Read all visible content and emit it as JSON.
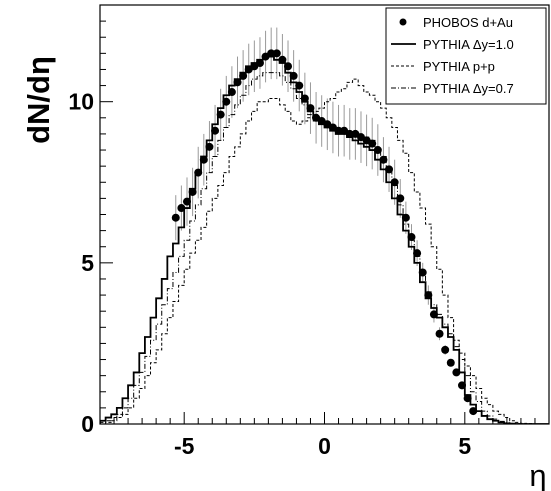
{
  "chart_data": {
    "type": "line",
    "title": "",
    "xlabel": "η",
    "ylabel": "dN/dη",
    "xlim": [
      -8,
      8
    ],
    "ylim": [
      0,
      13
    ],
    "grid": false,
    "legend_position": "top-right",
    "x_ticks": [
      {
        "value": -5,
        "label": "-5"
      },
      {
        "value": 0,
        "label": "0"
      },
      {
        "value": 5,
        "label": "5"
      }
    ],
    "y_ticks": [
      {
        "value": 0,
        "label": "0"
      },
      {
        "value": 5,
        "label": "5"
      },
      {
        "value": 10,
        "label": "10"
      }
    ],
    "bin_width": 0.2,
    "series": [
      {
        "name": "PHOBOS d+Au",
        "style": "points",
        "points": [
          [
            -5.3,
            6.4,
            0.7
          ],
          [
            -5.1,
            6.7,
            0.7
          ],
          [
            -4.9,
            6.9,
            0.75
          ],
          [
            -4.7,
            7.2,
            0.75
          ],
          [
            -4.5,
            7.8,
            0.8
          ],
          [
            -4.3,
            8.2,
            0.8
          ],
          [
            -4.1,
            8.6,
            0.8
          ],
          [
            -3.9,
            9.1,
            0.8
          ],
          [
            -3.7,
            9.6,
            0.8
          ],
          [
            -3.5,
            10.0,
            0.8
          ],
          [
            -3.3,
            10.3,
            0.8
          ],
          [
            -3.1,
            10.6,
            0.8
          ],
          [
            -2.9,
            10.8,
            0.8
          ],
          [
            -2.7,
            11.0,
            0.8
          ],
          [
            -2.5,
            11.1,
            0.8
          ],
          [
            -2.3,
            11.2,
            0.8
          ],
          [
            -2.1,
            11.4,
            0.8
          ],
          [
            -1.9,
            11.5,
            0.8
          ],
          [
            -1.7,
            11.5,
            0.8
          ],
          [
            -1.5,
            11.3,
            0.8
          ],
          [
            -1.3,
            11.1,
            0.8
          ],
          [
            -1.1,
            10.8,
            0.8
          ],
          [
            -0.9,
            10.5,
            0.8
          ],
          [
            -0.7,
            10.1,
            0.8
          ],
          [
            -0.5,
            9.8,
            0.8
          ],
          [
            -0.3,
            9.5,
            0.8
          ],
          [
            -0.1,
            9.4,
            0.8
          ],
          [
            0.1,
            9.3,
            0.8
          ],
          [
            0.3,
            9.2,
            0.8
          ],
          [
            0.5,
            9.1,
            0.8
          ],
          [
            0.7,
            9.1,
            0.8
          ],
          [
            0.9,
            9.0,
            0.8
          ],
          [
            1.1,
            9.0,
            0.8
          ],
          [
            1.3,
            8.9,
            0.8
          ],
          [
            1.5,
            8.8,
            0.8
          ],
          [
            1.7,
            8.7,
            0.8
          ],
          [
            1.9,
            8.5,
            0.8
          ],
          [
            2.1,
            8.2,
            0.7
          ],
          [
            2.3,
            7.9,
            0.7
          ],
          [
            2.5,
            7.5,
            0.7
          ],
          [
            2.7,
            7.0,
            0.6
          ],
          [
            2.9,
            6.4,
            0.5
          ],
          [
            3.1,
            5.8,
            0.4
          ],
          [
            3.3,
            5.3,
            0.4
          ],
          [
            3.5,
            4.7,
            0.3
          ],
          [
            3.7,
            4.0,
            0.3
          ],
          [
            3.9,
            3.4,
            0.25
          ],
          [
            4.1,
            2.8,
            0.2
          ],
          [
            4.3,
            2.3,
            0.15
          ],
          [
            4.5,
            1.9,
            0.1
          ],
          [
            4.7,
            1.6,
            0.1
          ],
          [
            4.9,
            1.2,
            0.1
          ],
          [
            5.1,
            0.8,
            0.08
          ],
          [
            5.3,
            0.4,
            0.05
          ]
        ]
      },
      {
        "name": "PYTHIA Δy=1.0",
        "style": "solid",
        "x": [
          -7.9,
          -7.7,
          -7.5,
          -7.3,
          -7.1,
          -6.9,
          -6.7,
          -6.5,
          -6.3,
          -6.1,
          -5.9,
          -5.7,
          -5.5,
          -5.3,
          -5.1,
          -4.9,
          -4.7,
          -4.5,
          -4.3,
          -4.1,
          -3.9,
          -3.7,
          -3.5,
          -3.3,
          -3.1,
          -2.9,
          -2.7,
          -2.5,
          -2.3,
          -2.1,
          -1.9,
          -1.7,
          -1.5,
          -1.3,
          -1.1,
          -0.9,
          -0.7,
          -0.5,
          -0.3,
          -0.1,
          0.1,
          0.3,
          0.5,
          0.7,
          0.9,
          1.1,
          1.3,
          1.5,
          1.7,
          1.9,
          2.1,
          2.3,
          2.5,
          2.7,
          2.9,
          3.1,
          3.3,
          3.5,
          3.7,
          3.9,
          4.1,
          4.3,
          4.5,
          4.7,
          4.9,
          5.1,
          5.3,
          5.5,
          5.7,
          5.9,
          6.1,
          6.3,
          6.5,
          6.7,
          6.9,
          7.1,
          7.3,
          7.5,
          7.7,
          7.9
        ],
        "values": [
          0.1,
          0.2,
          0.3,
          0.5,
          0.8,
          1.2,
          1.6,
          2.2,
          2.7,
          3.3,
          3.9,
          4.5,
          5.2,
          5.6,
          6.1,
          6.7,
          7.3,
          7.8,
          8.3,
          8.8,
          9.3,
          9.8,
          10.2,
          10.5,
          10.7,
          10.9,
          11.1,
          11.2,
          11.3,
          11.4,
          11.4,
          11.3,
          11.2,
          10.9,
          10.6,
          10.3,
          10.0,
          9.7,
          9.5,
          9.3,
          9.2,
          9.1,
          9.0,
          9.0,
          8.9,
          8.8,
          8.7,
          8.6,
          8.5,
          8.2,
          7.9,
          7.5,
          7.0,
          6.5,
          6.0,
          5.5,
          5.0,
          4.4,
          3.9,
          3.6,
          3.3,
          3.0,
          2.7,
          2.3,
          1.6,
          0.9,
          0.6,
          0.4,
          0.25,
          0.15,
          0.1,
          0.05,
          0.02,
          0.01,
          0,
          0,
          0,
          0,
          0,
          0
        ]
      },
      {
        "name": "PYTHIA p+p",
        "style": "dashed",
        "x": [
          -7.9,
          -7.7,
          -7.5,
          -7.3,
          -7.1,
          -6.9,
          -6.7,
          -6.5,
          -6.3,
          -6.1,
          -5.9,
          -5.7,
          -5.5,
          -5.3,
          -5.1,
          -4.9,
          -4.7,
          -4.5,
          -4.3,
          -4.1,
          -3.9,
          -3.7,
          -3.5,
          -3.3,
          -3.1,
          -2.9,
          -2.7,
          -2.5,
          -2.3,
          -2.1,
          -1.9,
          -1.7,
          -1.5,
          -1.3,
          -1.1,
          -0.9,
          -0.7,
          -0.5,
          -0.3,
          -0.1,
          0.1,
          0.3,
          0.5,
          0.7,
          0.9,
          1.1,
          1.3,
          1.5,
          1.7,
          1.9,
          2.1,
          2.3,
          2.5,
          2.7,
          2.9,
          3.1,
          3.3,
          3.5,
          3.7,
          3.9,
          4.1,
          4.3,
          4.5,
          4.7,
          4.9,
          5.1,
          5.3,
          5.5,
          5.7,
          5.9,
          6.1,
          6.3,
          6.5,
          6.7,
          6.9,
          7.1,
          7.3,
          7.5,
          7.7,
          7.9
        ],
        "values": [
          0,
          0.05,
          0.1,
          0.2,
          0.3,
          0.5,
          0.8,
          1.1,
          1.5,
          1.9,
          2.3,
          2.8,
          3.3,
          3.8,
          4.3,
          4.8,
          5.3,
          5.7,
          6.1,
          6.6,
          7.0,
          7.4,
          7.8,
          8.3,
          8.6,
          9.0,
          9.4,
          9.7,
          10.0,
          10.0,
          10.1,
          10.1,
          9.9,
          9.7,
          9.4,
          9.3,
          9.4,
          9.5,
          9.7,
          9.8,
          10.0,
          10.1,
          10.3,
          10.4,
          10.6,
          10.7,
          10.5,
          10.3,
          10.2,
          10.0,
          9.8,
          9.5,
          9.2,
          8.8,
          8.4,
          7.8,
          7.2,
          6.7,
          6.2,
          5.5,
          4.8,
          4.0,
          3.3,
          2.6,
          2.2,
          1.8,
          1.5,
          1.1,
          0.8,
          0.6,
          0.4,
          0.3,
          0.2,
          0.1,
          0.05,
          0.02,
          0.01,
          0,
          0,
          0
        ]
      },
      {
        "name": "PYTHIA Δy=0.7",
        "style": "dashdot",
        "x": [
          -7.9,
          -7.7,
          -7.5,
          -7.3,
          -7.1,
          -6.9,
          -6.7,
          -6.5,
          -6.3,
          -6.1,
          -5.9,
          -5.7,
          -5.5,
          -5.3,
          -5.1,
          -4.9,
          -4.7,
          -4.5,
          -4.3,
          -4.1,
          -3.9,
          -3.7,
          -3.5,
          -3.3,
          -3.1,
          -2.9,
          -2.7,
          -2.5,
          -2.3,
          -2.1,
          -1.9,
          -1.7,
          -1.5,
          -1.3,
          -1.1,
          -0.9,
          -0.7,
          -0.5,
          -0.3,
          -0.1,
          0.1,
          0.3,
          0.5,
          0.7,
          0.9,
          1.1,
          1.3,
          1.5,
          1.7,
          1.9,
          2.1,
          2.3,
          2.5,
          2.7,
          2.9,
          3.1,
          3.3,
          3.5,
          3.7,
          3.9,
          4.1,
          4.3,
          4.5,
          4.7,
          4.9,
          5.1,
          5.3,
          5.5,
          5.7,
          5.9,
          6.1,
          6.3,
          6.5,
          6.7,
          6.9,
          7.1,
          7.3,
          7.5,
          7.7,
          7.9
        ],
        "values": [
          0.05,
          0.1,
          0.2,
          0.3,
          0.5,
          0.8,
          1.2,
          1.6,
          2.1,
          2.6,
          3.1,
          3.7,
          4.2,
          4.7,
          5.2,
          5.7,
          6.3,
          6.8,
          7.3,
          7.8,
          8.3,
          8.8,
          9.2,
          9.6,
          9.9,
          10.2,
          10.5,
          10.7,
          10.8,
          10.9,
          10.9,
          10.9,
          10.8,
          10.6,
          10.4,
          10.1,
          9.9,
          9.6,
          9.4,
          9.3,
          9.2,
          9.2,
          9.1,
          9.1,
          9.0,
          9.0,
          9.0,
          8.9,
          8.8,
          8.6,
          8.3,
          7.9,
          7.4,
          6.8,
          6.2,
          5.7,
          5.2,
          4.6,
          4.1,
          3.7,
          3.4,
          3.1,
          2.8,
          2.4,
          2.0,
          1.5,
          1.0,
          0.7,
          0.4,
          0.25,
          0.15,
          0.08,
          0.04,
          0.02,
          0.01,
          0,
          0,
          0,
          0,
          0
        ]
      }
    ]
  }
}
